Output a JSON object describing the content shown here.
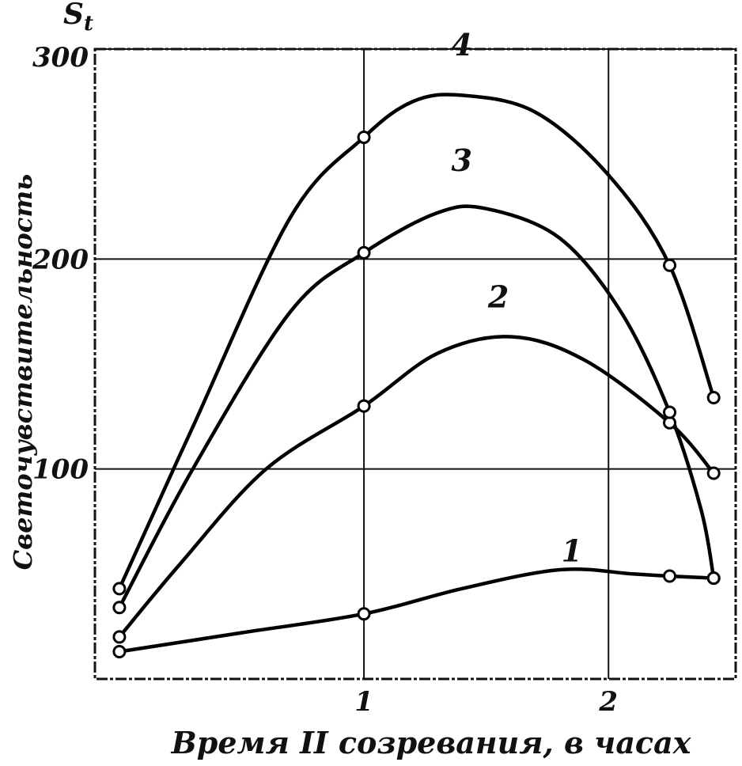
{
  "chart_data": {
    "type": "line",
    "title": "",
    "xlabel": "Время II созревания, в часах",
    "ylabel": "Светочувствительность",
    "y_symbol": "S_t",
    "xlim": [
      -0.1,
      2.52
    ],
    "ylim": [
      0,
      300
    ],
    "x_ticks": [
      1,
      2
    ],
    "y_ticks": [
      100,
      200,
      300
    ],
    "grid": true,
    "legend": "inline labels on curves",
    "series": [
      {
        "name": "1",
        "points": [
          [
            0,
            13
          ],
          [
            1,
            31
          ],
          [
            2.25,
            49
          ],
          [
            2.43,
            48
          ]
        ],
        "label_at": [
          1.85,
          56
        ]
      },
      {
        "name": "2",
        "points": [
          [
            0,
            20
          ],
          [
            1,
            130
          ],
          [
            2.25,
            122
          ],
          [
            2.43,
            98
          ]
        ],
        "label_at": [
          1.55,
          177
        ]
      },
      {
        "name": "3",
        "points": [
          [
            0,
            34
          ],
          [
            1,
            203
          ],
          [
            2.25,
            127
          ],
          [
            2.43,
            48
          ]
        ],
        "label_at": [
          1.4,
          242
        ]
      },
      {
        "name": "4",
        "points": [
          [
            0,
            43
          ],
          [
            1,
            258
          ],
          [
            2.25,
            197
          ],
          [
            2.43,
            134
          ]
        ],
        "label_at": [
          1.4,
          297
        ]
      }
    ],
    "curve_shape": {
      "1": [
        [
          0,
          13
        ],
        [
          0.5,
          22
        ],
        [
          1,
          31
        ],
        [
          1.4,
          43
        ],
        [
          1.8,
          52
        ],
        [
          2.1,
          50
        ],
        [
          2.25,
          49
        ],
        [
          2.43,
          48
        ]
      ],
      "2": [
        [
          0,
          20
        ],
        [
          0.25,
          55
        ],
        [
          0.6,
          100
        ],
        [
          1,
          130
        ],
        [
          1.3,
          155
        ],
        [
          1.6,
          163
        ],
        [
          1.9,
          152
        ],
        [
          2.25,
          122
        ],
        [
          2.43,
          98
        ]
      ],
      "3": [
        [
          0,
          34
        ],
        [
          0.3,
          100
        ],
        [
          0.7,
          175
        ],
        [
          1,
          203
        ],
        [
          1.3,
          222
        ],
        [
          1.5,
          224
        ],
        [
          1.8,
          210
        ],
        [
          2.05,
          175
        ],
        [
          2.25,
          127
        ],
        [
          2.38,
          80
        ],
        [
          2.43,
          48
        ]
      ],
      "4": [
        [
          0,
          43
        ],
        [
          0.3,
          120
        ],
        [
          0.7,
          220
        ],
        [
          1,
          258
        ],
        [
          1.2,
          275
        ],
        [
          1.4,
          278
        ],
        [
          1.7,
          270
        ],
        [
          2.0,
          240
        ],
        [
          2.25,
          197
        ],
        [
          2.43,
          134
        ]
      ]
    }
  }
}
